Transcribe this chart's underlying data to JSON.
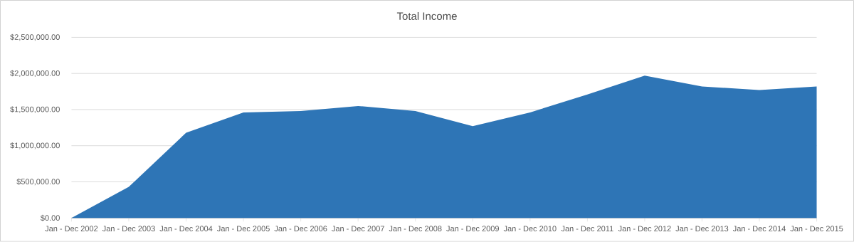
{
  "chart_data": {
    "type": "area",
    "title": "Total Income",
    "categories": [
      "Jan - Dec 2002",
      "Jan - Dec 2003",
      "Jan - Dec 2004",
      "Jan - Dec 2005",
      "Jan - Dec 2006",
      "Jan - Dec 2007",
      "Jan - Dec 2008",
      "Jan - Dec 2009",
      "Jan - Dec 2010",
      "Jan - Dec 2011",
      "Jan - Dec 2012",
      "Jan - Dec 2013",
      "Jan - Dec 2014",
      "Jan - Dec 2015"
    ],
    "values": [
      0,
      430000,
      1180000,
      1460000,
      1480000,
      1550000,
      1480000,
      1270000,
      1460000,
      1710000,
      1970000,
      1820000,
      1770000,
      1820000
    ],
    "color": "#2e75b6",
    "ylim": [
      0,
      2500000
    ],
    "yticks": [
      {
        "value": 0,
        "label": "$0.00"
      },
      {
        "value": 500000,
        "label": "$500,000.00"
      },
      {
        "value": 1000000,
        "label": "$1,000,000.00"
      },
      {
        "value": 1500000,
        "label": "$1,500,000.00"
      },
      {
        "value": 2000000,
        "label": "$2,000,000.00"
      },
      {
        "value": 2500000,
        "label": "$2,500,000.00"
      }
    ],
    "grid": "y"
  }
}
